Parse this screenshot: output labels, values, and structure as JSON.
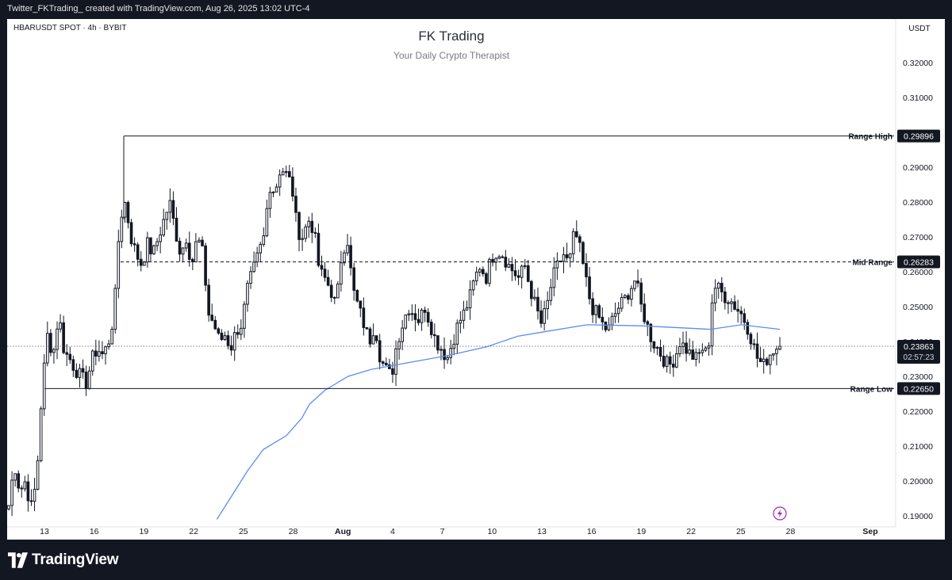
{
  "header": {
    "caption": "Twitter_FKTrading_ created with TradingView.com, Aug 26, 2025 13:02 UTC-4"
  },
  "chart": {
    "symbol_label": "HBARUSDT SPOT · 4h · BYBIT",
    "title": "FK Trading",
    "subtitle": "Your Daily Crypto Therapist",
    "currency": "USDT",
    "flash_icon": "lightning-icon"
  },
  "footer": {
    "brand": "TradingView",
    "logo_icon": "tradingview-logo-icon"
  },
  "colors": {
    "candle": "#131722",
    "ma_line": "#5b8cf0",
    "level_line": "#131722",
    "grid_bg": "#ffffff",
    "flash_icon": "#9c27b0"
  },
  "chart_data": {
    "type": "candlestick",
    "x_axis": {
      "tick_labels": [
        "13",
        "16",
        "19",
        "22",
        "25",
        "28",
        "Aug",
        "4",
        "7",
        "10",
        "13",
        "16",
        "19",
        "22",
        "25",
        "28",
        "Sep"
      ]
    },
    "y_axis": {
      "min": 0.1875,
      "max": 0.3275,
      "ticks": [
        0.19,
        0.2,
        0.21,
        0.22,
        0.23,
        0.24,
        0.25,
        0.26,
        0.27,
        0.28,
        0.29,
        0.3,
        0.31,
        0.32
      ],
      "tick_labels": [
        "0.19000",
        "0.20000",
        "0.21000",
        "0.22000",
        "0.23000",
        "0.24000",
        "0.25000",
        "0.26000",
        "0.27000",
        "0.28000",
        "0.29000",
        "0.30000",
        "0.31000",
        "0.32000"
      ]
    },
    "levels": [
      {
        "label": "Range High",
        "value": 0.29896,
        "price_label": "0.29896",
        "style": "solid"
      },
      {
        "label": "Mid Range",
        "value": 0.26283,
        "price_label": "0.26283",
        "style": "dashed"
      },
      {
        "label": "Range Low",
        "value": 0.2265,
        "price_label": "0.22650",
        "style": "solid"
      }
    ],
    "current_price": {
      "value": 0.23863,
      "price_label": "0.23863",
      "countdown": "02:57:23"
    },
    "price_path": [
      0.193,
      0.205,
      0.197,
      0.2,
      0.192,
      0.2,
      0.2265,
      0.242,
      0.236,
      0.248,
      0.237,
      0.235,
      0.232,
      0.23,
      0.228,
      0.235,
      0.238,
      0.236,
      0.24,
      0.248,
      0.275,
      0.28,
      0.27,
      0.265,
      0.262,
      0.268,
      0.265,
      0.27,
      0.275,
      0.28,
      0.272,
      0.265,
      0.27,
      0.262,
      0.27,
      0.265,
      0.248,
      0.245,
      0.24,
      0.242,
      0.238,
      0.243,
      0.245,
      0.255,
      0.26,
      0.265,
      0.27,
      0.285,
      0.283,
      0.29,
      0.288,
      0.285,
      0.272,
      0.27,
      0.275,
      0.272,
      0.26,
      0.258,
      0.255,
      0.25,
      0.265,
      0.27,
      0.255,
      0.25,
      0.245,
      0.24,
      0.245,
      0.235,
      0.232,
      0.23,
      0.24,
      0.245,
      0.25,
      0.248,
      0.246,
      0.25,
      0.245,
      0.24,
      0.238,
      0.235,
      0.24,
      0.245,
      0.248,
      0.252,
      0.258,
      0.262,
      0.258,
      0.264,
      0.266,
      0.265,
      0.262,
      0.26,
      0.258,
      0.262,
      0.255,
      0.25,
      0.245,
      0.25,
      0.258,
      0.262,
      0.265,
      0.262,
      0.272,
      0.266,
      0.258,
      0.25,
      0.248,
      0.245,
      0.243,
      0.247,
      0.25,
      0.252,
      0.255,
      0.258,
      0.25,
      0.245,
      0.24,
      0.238,
      0.235,
      0.233,
      0.235,
      0.24,
      0.238,
      0.236,
      0.235,
      0.238,
      0.236,
      0.256,
      0.255,
      0.253,
      0.252,
      0.25,
      0.248,
      0.245,
      0.24,
      0.235,
      0.233,
      0.236,
      0.238,
      0.23863
    ],
    "moving_average": [
      {
        "x": 0.27,
        "y": 0.189
      },
      {
        "x": 0.29,
        "y": 0.196
      },
      {
        "x": 0.31,
        "y": 0.203
      },
      {
        "x": 0.33,
        "y": 0.209
      },
      {
        "x": 0.36,
        "y": 0.213
      },
      {
        "x": 0.38,
        "y": 0.218
      },
      {
        "x": 0.39,
        "y": 0.222
      },
      {
        "x": 0.41,
        "y": 0.226
      },
      {
        "x": 0.44,
        "y": 0.23
      },
      {
        "x": 0.47,
        "y": 0.232
      },
      {
        "x": 0.52,
        "y": 0.234
      },
      {
        "x": 0.57,
        "y": 0.236
      },
      {
        "x": 0.62,
        "y": 0.2385
      },
      {
        "x": 0.66,
        "y": 0.2415
      },
      {
        "x": 0.7,
        "y": 0.243
      },
      {
        "x": 0.75,
        "y": 0.2448
      },
      {
        "x": 0.82,
        "y": 0.2445
      },
      {
        "x": 0.91,
        "y": 0.2435
      },
      {
        "x": 0.95,
        "y": 0.2448
      },
      {
        "x": 1.0,
        "y": 0.2435
      }
    ]
  }
}
